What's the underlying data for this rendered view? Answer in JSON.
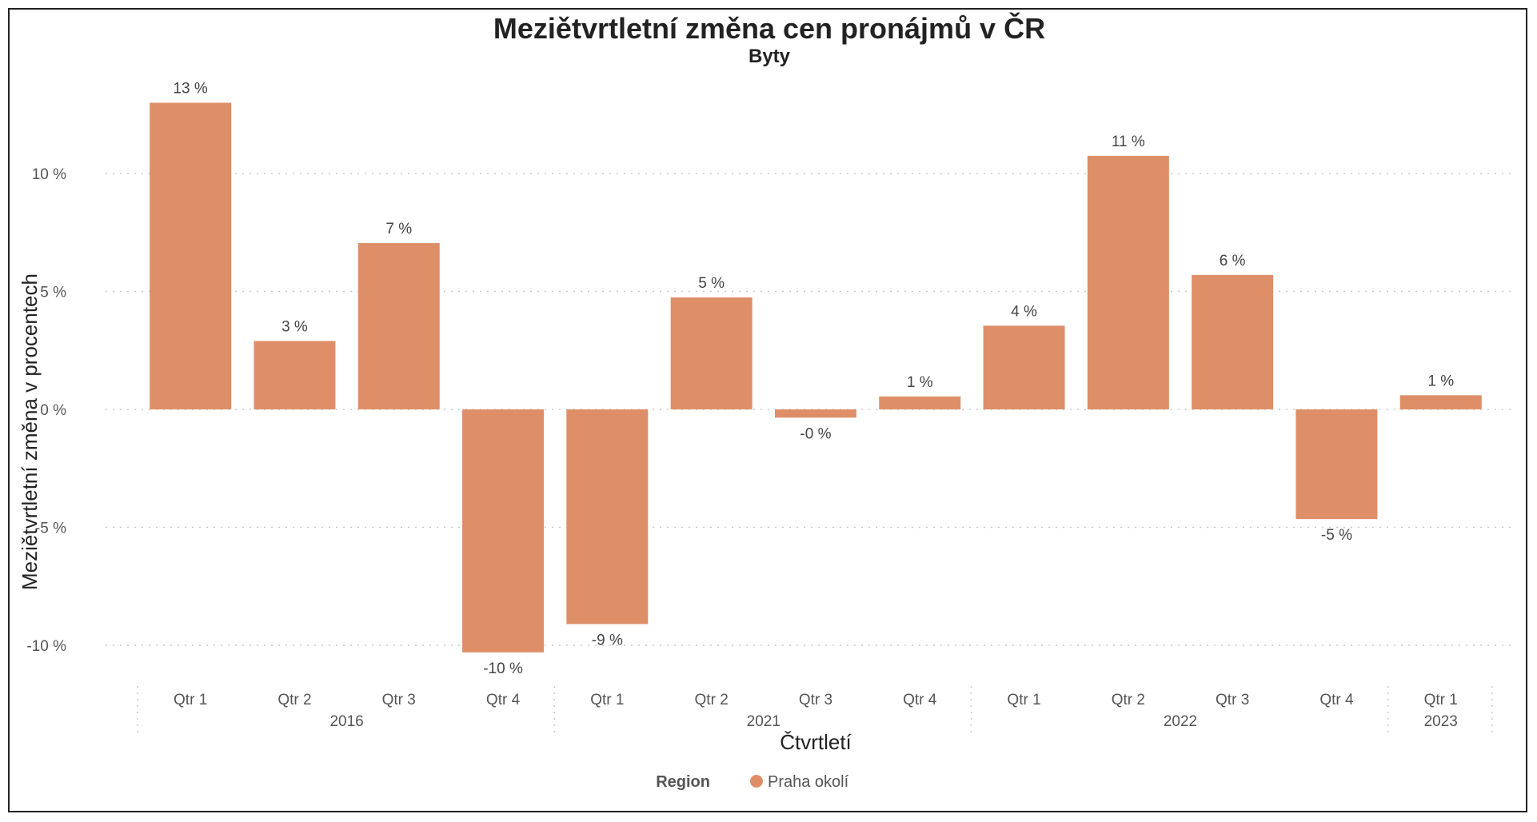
{
  "chart_data": {
    "type": "bar",
    "title": "Meziětvrtletní změna cen pronájmů v ČR",
    "subtitle": "Byty",
    "xlabel": "Čtvrtletí",
    "ylabel": "Meziětvrtletní změna v procentech",
    "ylim": [
      -11,
      14
    ],
    "yticks": [
      10,
      5,
      0,
      -5,
      -10
    ],
    "ytick_labels": [
      "10 %",
      "5 %",
      "0 %",
      "-5 %",
      "-10 %"
    ],
    "grid": true,
    "categories": [
      "Qtr 1",
      "Qtr 2",
      "Qtr 3",
      "Qtr 4",
      "Qtr 1",
      "Qtr 2",
      "Qtr 3",
      "Qtr 4",
      "Qtr 1",
      "Qtr 2",
      "Qtr 3",
      "Qtr 4",
      "Qtr 1"
    ],
    "years": [
      {
        "label": "2016",
        "count": 4
      },
      {
        "label": "2021",
        "count": 4
      },
      {
        "label": "2022",
        "count": 4
      },
      {
        "label": "2023",
        "count": 1
      }
    ],
    "series": [
      {
        "name": "Praha okolí",
        "color": "#DE8F68",
        "values": [
          13.0,
          2.9,
          7.05,
          -10.3,
          -9.1,
          4.75,
          -0.35,
          0.55,
          3.55,
          10.75,
          5.7,
          -4.65,
          0.6
        ],
        "labels": [
          "13 %",
          "3 %",
          "7 %",
          "-10 %",
          "-9 %",
          "5 %",
          "-0 %",
          "1 %",
          "4 %",
          "11 %",
          "6 %",
          "-5 %",
          "1 %"
        ]
      }
    ],
    "legend": {
      "title": "Region",
      "position": "bottom"
    }
  }
}
